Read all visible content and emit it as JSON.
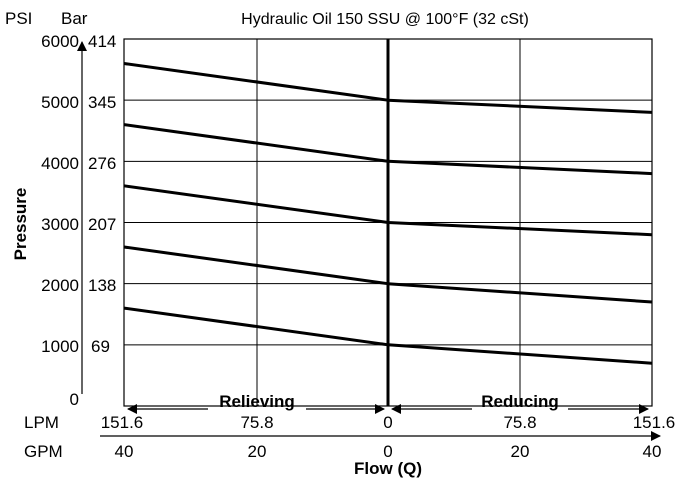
{
  "chart_data": {
    "type": "line",
    "title": "Hydraulic Oil 150 SSU @ 100°F (32 cSt)",
    "ylabel": "Pressure",
    "xlabel": "Flow (Q)",
    "y_units": {
      "psi": "PSI",
      "bar": "Bar"
    },
    "x_units": {
      "lpm": "LPM",
      "gpm": "GPM"
    },
    "y_ticks_psi": [
      "0",
      "1000",
      "2000",
      "3000",
      "4000",
      "5000",
      "6000"
    ],
    "y_ticks_bar": [
      "69",
      "138",
      "207",
      "276",
      "345",
      "414"
    ],
    "x_ticks_lpm": [
      "151.6",
      "75.8",
      "0",
      "75.8",
      "151.6"
    ],
    "x_ticks_gpm": [
      "40",
      "20",
      "0",
      "20",
      "40"
    ],
    "regions": {
      "left": "Relieving",
      "right": "Reducing"
    },
    "x_range_lpm": [
      -151.6,
      151.6
    ],
    "y_range_psi": [
      0,
      6000
    ],
    "grid": true,
    "series": [
      {
        "x": [
          -151.6,
          0,
          151.6
        ],
        "y": [
          1600,
          1000,
          700
        ]
      },
      {
        "x": [
          -151.6,
          0,
          151.6
        ],
        "y": [
          2600,
          2000,
          1700
        ]
      },
      {
        "x": [
          -151.6,
          0,
          151.6
        ],
        "y": [
          3600,
          3000,
          2800
        ]
      },
      {
        "x": [
          -151.6,
          0,
          151.6
        ],
        "y": [
          4600,
          4000,
          3800
        ]
      },
      {
        "x": [
          -151.6,
          0,
          151.6
        ],
        "y": [
          5600,
          5000,
          4800
        ]
      }
    ]
  }
}
